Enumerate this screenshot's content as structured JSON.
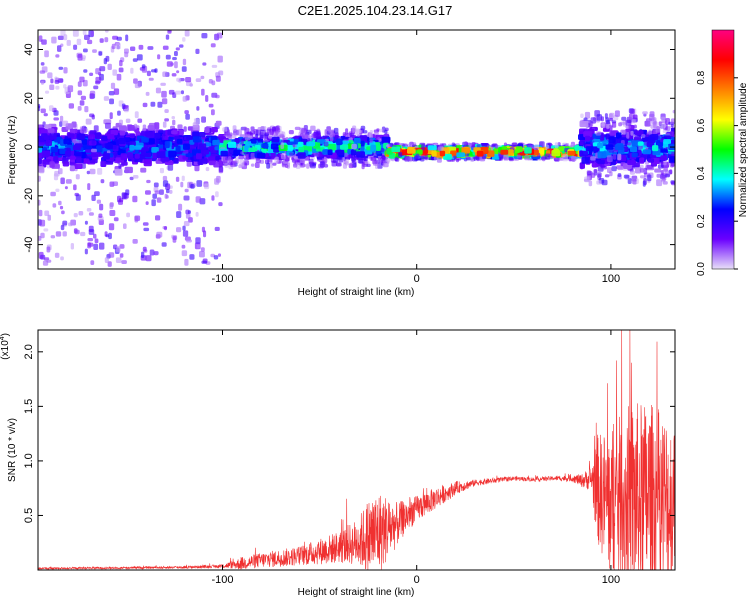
{
  "page": {
    "title": "C2E1.2025.104.23.14.G17"
  },
  "chart_data": [
    {
      "type": "heatmap",
      "xlabel": "Height of straight line (km)",
      "ylabel": "Frequency (Hz)",
      "xlim": [
        -195,
        133
      ],
      "ylim": [
        -50,
        48
      ],
      "xticks": [
        -100,
        0,
        100
      ],
      "yticks": [
        -40,
        -20,
        0,
        20,
        40
      ],
      "grid": false,
      "colorbar": {
        "label": "Normalized spectral amplitude",
        "range": [
          0.0,
          1.0
        ],
        "ticks": [
          0.0,
          0.2,
          0.4,
          0.6,
          0.8
        ],
        "colors": [
          "#e8e0f8",
          "#6a00ff",
          "#0000ff",
          "#00ffff",
          "#00ff00",
          "#ffff00",
          "#ff8000",
          "#ff0000",
          "#ff0080"
        ]
      },
      "bands": [
        {
          "x_range": [
            -195,
            -100
          ],
          "center_freq": 0,
          "core_halfwidth": 6,
          "scatter_halfwidth": 48,
          "peak_amplitude": 0.35
        },
        {
          "x_range": [
            -100,
            -15
          ],
          "center_freq": 0,
          "core_halfwidth": 3,
          "scatter_halfwidth": 8,
          "peak_amplitude": 0.5
        },
        {
          "x_range": [
            -15,
            85
          ],
          "center_freq": -2,
          "core_halfwidth": 1.5,
          "scatter_halfwidth": 3,
          "peak_amplitude": 0.95
        },
        {
          "x_range": [
            85,
            133
          ],
          "center_freq": 0,
          "core_halfwidth": 6,
          "scatter_halfwidth": 15,
          "peak_amplitude": 0.4
        }
      ]
    },
    {
      "type": "line",
      "xlabel": "Height of straight line (km)",
      "ylabel": "SNR (10 * v/v)",
      "y_exponent_label": "(x10",
      "y_exponent": "4",
      "xlim": [
        -195,
        133
      ],
      "ylim": [
        0,
        22000
      ],
      "xticks": [
        -100,
        0,
        100
      ],
      "yticks": [
        5000,
        10000,
        15000,
        20000
      ],
      "ytick_labels": [
        "0.5",
        "1.0",
        "1.5",
        "2.0"
      ],
      "series": [
        {
          "color": "#f03030",
          "x": [
            -195,
            -150,
            -120,
            -100,
            -90,
            -80,
            -70,
            -60,
            -50,
            -40,
            -30,
            -25,
            -20,
            -15,
            -10,
            -5,
            0,
            10,
            20,
            30,
            40,
            50,
            60,
            70,
            80,
            85,
            90,
            93,
            100,
            110,
            120,
            133
          ],
          "y": [
            150,
            200,
            250,
            350,
            600,
            900,
            1100,
            1300,
            1700,
            2100,
            2600,
            3000,
            3400,
            3800,
            4200,
            5000,
            5600,
            6600,
            7500,
            8000,
            8200,
            8400,
            8300,
            8400,
            8400,
            8200,
            8400,
            7500,
            6000,
            6500,
            6500,
            6000
          ],
          "noise_amplitude": [
            80,
            100,
            120,
            150,
            600,
            700,
            800,
            900,
            1200,
            1500,
            2200,
            3600,
            4000,
            3000,
            2000,
            1500,
            1200,
            1000,
            600,
            300,
            250,
            200,
            200,
            200,
            300,
            600,
            1200,
            5000,
            7000,
            9000,
            9000,
            8000
          ]
        }
      ]
    }
  ]
}
